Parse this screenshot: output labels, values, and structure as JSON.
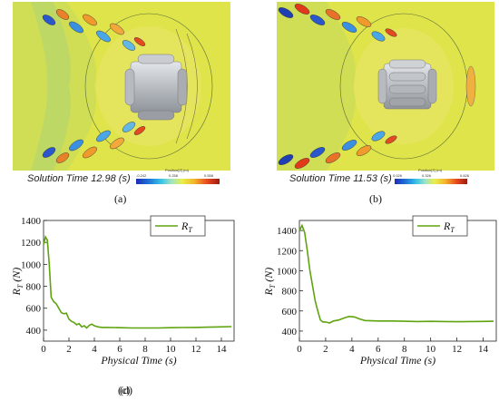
{
  "panels": {
    "a": {
      "solution_time": "Solution Time 12.98 (s)",
      "colorbar": {
        "title": "Position[Z] (m)",
        "min": "-0.242",
        "mid": "0.258",
        "max": "0.558"
      },
      "caption": "(a)"
    },
    "b": {
      "solution_time": "Solution Time 11.53 (s)",
      "colorbar": {
        "title": "Position[Z] (m)",
        "min": "0.026",
        "mid": "0.326",
        "max": "0.626"
      },
      "caption": "(b)"
    },
    "c": {
      "caption": "(c)"
    },
    "d": {
      "caption": "(d)"
    }
  },
  "colors": {
    "series": "#5fa30f",
    "field_bg": "#dfe44a",
    "body": "#b9bdc2"
  },
  "chart_data": [
    {
      "type": "line",
      "xlabel": "Physical Time (s)",
      "ylabel_main": "R",
      "ylabel_sub": "T",
      "ylabel_unit": " (N)",
      "xlim": [
        0,
        15
      ],
      "ylim": [
        300,
        1400
      ],
      "xticks": [
        "0",
        "2",
        "4",
        "6",
        "8",
        "10",
        "12",
        "14"
      ],
      "yticks": [
        "400",
        "600",
        "800",
        "1000",
        "1200",
        "1400"
      ],
      "grid": false,
      "legend": "top-right",
      "series": [
        {
          "name_main": "R",
          "name_sub": "T",
          "x": [
            0,
            0.15,
            0.3,
            0.45,
            0.6,
            0.8,
            1.0,
            1.2,
            1.4,
            1.6,
            1.8,
            2.0,
            2.2,
            2.4,
            2.6,
            2.8,
            3.0,
            3.2,
            3.4,
            3.6,
            3.8,
            4.0,
            4.3,
            4.6,
            5.0,
            6,
            7,
            8,
            9,
            10,
            11,
            12,
            13,
            14,
            14.8
          ],
          "y": [
            1180,
            1250,
            1220,
            1000,
            700,
            660,
            640,
            600,
            560,
            550,
            555,
            500,
            480,
            470,
            450,
            460,
            430,
            440,
            420,
            445,
            455,
            440,
            430,
            425,
            425,
            422,
            420,
            420,
            420,
            422,
            424,
            425,
            427,
            430,
            432
          ]
        }
      ]
    },
    {
      "type": "line",
      "xlabel": "Physical Time (s)",
      "ylabel_main": "R",
      "ylabel_sub": "T",
      "ylabel_unit": " (N)",
      "xlim": [
        0,
        15
      ],
      "ylim": [
        300,
        1500
      ],
      "xticks": [
        "0",
        "2",
        "4",
        "6",
        "8",
        "10",
        "12",
        "14"
      ],
      "yticks": [
        "400",
        "600",
        "800",
        "1000",
        "1200",
        "1400"
      ],
      "grid": false,
      "legend": "top-right",
      "series": [
        {
          "name_main": "R",
          "name_sub": "T",
          "x": [
            0,
            0.2,
            0.4,
            0.6,
            0.8,
            1.0,
            1.2,
            1.4,
            1.6,
            1.8,
            2.0,
            2.3,
            2.6,
            3.0,
            3.4,
            3.8,
            4.2,
            4.6,
            5.0,
            6,
            7,
            8,
            9,
            10,
            11,
            12,
            13,
            14,
            14.8
          ],
          "y": [
            1400,
            1450,
            1380,
            1200,
            1000,
            850,
            700,
            600,
            510,
            490,
            490,
            480,
            500,
            510,
            530,
            545,
            540,
            520,
            505,
            500,
            500,
            498,
            495,
            497,
            495,
            493,
            495,
            496,
            498
          ]
        }
      ]
    }
  ]
}
